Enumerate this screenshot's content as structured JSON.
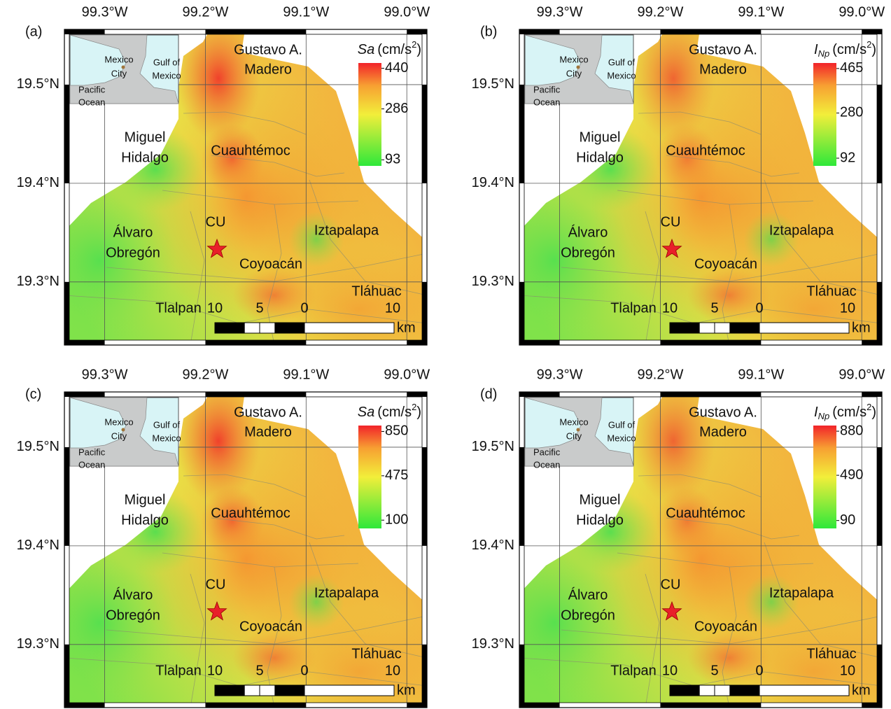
{
  "map": {
    "xlim": [
      -99.34,
      -98.98
    ],
    "ylim": [
      19.236,
      19.556
    ],
    "xticks": [
      {
        "value": -99.3,
        "label": "99.3°W"
      },
      {
        "value": -99.2,
        "label": "99.2°W"
      },
      {
        "value": -99.1,
        "label": "99.1°W"
      },
      {
        "value": -99.0,
        "label": "99.0°W"
      }
    ],
    "yticks": [
      {
        "value": 19.5,
        "label": "19.5°N"
      },
      {
        "value": 19.4,
        "label": "19.4°N"
      },
      {
        "value": 19.3,
        "label": "19.3°N"
      }
    ]
  },
  "inset": {
    "labels": [
      [
        "Mexico",
        "City"
      ],
      [
        "Gulf of",
        "Mexico"
      ],
      [
        "Pacific",
        "Ocean"
      ]
    ]
  },
  "places": [
    [
      "Gustavo A.",
      "Madero"
    ],
    [
      "Miguel",
      "Hidalgo"
    ],
    [
      "Cuauhtémoc"
    ],
    [
      "Álvaro",
      "Obregón"
    ],
    [
      "CU"
    ],
    [
      "Coyoacán"
    ],
    [
      "Iztapalapa"
    ],
    [
      "Tláhuac"
    ],
    [
      "Tlalpan"
    ]
  ],
  "scale_bar": {
    "ticks": [
      {
        "value": -10,
        "label": "10"
      },
      {
        "value": -5,
        "label": "5"
      },
      0,
      10
    ],
    "unit": "km"
  },
  "panels": [
    {
      "label": "(a)",
      "colorbar": {
        "symbol": "Sa",
        "unit": "(cm/s",
        "exponent": "2",
        "close": ")",
        "lim": [
          70,
          460
        ],
        "ticks": [
          93,
          286,
          440
        ]
      }
    },
    {
      "label": "(b)",
      "colorbar": {
        "symbol": "I",
        "subscript": "Np",
        "unit": "(cm/s",
        "exponent": "2",
        "close": ")",
        "lim": [
          60,
          488
        ],
        "ticks": [
          92,
          280,
          465
        ]
      }
    },
    {
      "label": "(c)",
      "colorbar": {
        "symbol": "Sa",
        "unit": "(cm/s",
        "exponent": "2",
        "close": ")",
        "lim": [
          30,
          900
        ],
        "ticks": [
          100,
          475,
          850
        ]
      }
    },
    {
      "label": "(d)",
      "colorbar": {
        "symbol": "I",
        "subscript": "Np",
        "unit": "(cm/s",
        "exponent": "2",
        "close": ")",
        "lim": [
          20,
          930
        ],
        "ticks": [
          90,
          490,
          880
        ]
      }
    }
  ]
}
